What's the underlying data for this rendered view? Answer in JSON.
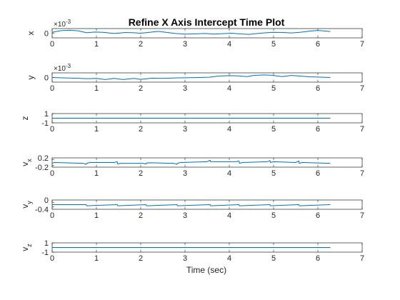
{
  "figure": {
    "title": "Refine X Axis Intercept Time Plot",
    "xlabel": "Time (sec)"
  },
  "colors": {
    "line": "#0072BD",
    "axes": "#262626",
    "grid": "#262626",
    "background": "#ffffff"
  },
  "chart_data": [
    {
      "type": "line",
      "ylabel": "x",
      "exponent_label": "×10^{-3}",
      "xlim": [
        0,
        7
      ],
      "ylim": [
        -2,
        2
      ],
      "xticks": [
        0,
        1,
        2,
        3,
        4,
        5,
        6,
        7
      ],
      "xtick_labels": [
        "0",
        "1",
        "2",
        "3",
        "4",
        "5",
        "6",
        "7"
      ],
      "yticks": [
        0
      ],
      "ytick_labels": [
        "0"
      ],
      "grid": "x-only",
      "series": [
        {
          "x": [
            0,
            0.2,
            0.4,
            0.6,
            0.78,
            0.95,
            1.15,
            1.4,
            1.65,
            1.85,
            2.0,
            2.2,
            2.4,
            2.6,
            2.78,
            3.0,
            3.2,
            3.45,
            3.65,
            3.85,
            4.05,
            4.25,
            4.45,
            4.6,
            4.78,
            5.0,
            5.2,
            5.4,
            5.6,
            5.8,
            6.0,
            6.2,
            6.28
          ],
          "y": [
            0.4,
            1.1,
            1.3,
            1.0,
            0.2,
            0.5,
            0.4,
            -0.1,
            0.3,
            0.2,
            0.0,
            0.4,
            0.8,
            0.3,
            -0.1,
            -0.4,
            -0.3,
            -0.1,
            -0.4,
            -0.2,
            0.0,
            -0.3,
            -0.5,
            -0.2,
            0.1,
            0.4,
            0.3,
            0.1,
            0.4,
            0.9,
            1.2,
            0.9,
            0.7
          ]
        }
      ]
    },
    {
      "type": "line",
      "ylabel": "y",
      "exponent_label": "×10^{-3}",
      "xlim": [
        0,
        7
      ],
      "ylim": [
        -2,
        2
      ],
      "xticks": [
        0,
        1,
        2,
        3,
        4,
        5,
        6,
        7
      ],
      "xtick_labels": [
        "0",
        "1",
        "2",
        "3",
        "4",
        "5",
        "6",
        "7"
      ],
      "yticks": [
        0
      ],
      "ytick_labels": [
        "0"
      ],
      "grid": "x-only",
      "series": [
        {
          "x": [
            0,
            0.3,
            0.55,
            0.78,
            1.0,
            1.2,
            1.4,
            1.6,
            1.85,
            2.0,
            2.25,
            2.5,
            2.78,
            3.0,
            3.3,
            3.55,
            3.75,
            4.0,
            4.2,
            4.4,
            4.55,
            4.78,
            5.0,
            5.2,
            5.4,
            5.55,
            5.8,
            6.0,
            6.28
          ],
          "y": [
            0.0,
            -0.2,
            -0.3,
            -0.5,
            -0.4,
            -0.9,
            -0.4,
            -0.9,
            -0.4,
            -0.8,
            -0.3,
            -0.4,
            -0.2,
            -0.1,
            0.0,
            0.1,
            0.6,
            0.8,
            0.7,
            0.4,
            0.9,
            1.1,
            0.9,
            0.4,
            0.9,
            0.7,
            0.3,
            0.2,
            0.0
          ]
        }
      ]
    },
    {
      "type": "line",
      "ylabel": "z",
      "xlim": [
        0,
        7
      ],
      "ylim": [
        -1,
        1
      ],
      "xticks": [
        0,
        1,
        2,
        3,
        4,
        5,
        6,
        7
      ],
      "xtick_labels": [
        "0",
        "1",
        "2",
        "3",
        "4",
        "5",
        "6",
        "7"
      ],
      "yticks": [
        1,
        -1
      ],
      "ytick_labels": [
        "1",
        "-1"
      ],
      "grid": "x-only",
      "series": [
        {
          "x": [
            0,
            6.28
          ],
          "y": [
            0,
            0
          ]
        }
      ]
    },
    {
      "type": "line",
      "ylabel": "v_x",
      "xlim": [
        0,
        7
      ],
      "ylim": [
        -0.3,
        0.3
      ],
      "xticks": [
        0,
        1,
        2,
        3,
        4,
        5,
        6,
        7
      ],
      "xtick_labels": [
        "0",
        "1",
        "2",
        "3",
        "4",
        "5",
        "6",
        "7"
      ],
      "yticks": [
        0.2,
        -0.2
      ],
      "ytick_labels": [
        "0.2",
        "-0.2"
      ],
      "grid": "x-only",
      "series": [
        {
          "x": [
            0,
            0.05,
            0.7,
            0.77,
            0.78,
            0.85,
            1.4,
            1.47,
            1.48,
            1.55,
            2.05,
            2.12,
            2.13,
            2.2,
            2.75,
            2.82,
            2.83,
            2.9,
            3.5,
            3.57,
            3.58,
            3.65,
            4.15,
            4.22,
            4.23,
            4.3,
            4.85,
            4.92,
            4.93,
            5.0,
            5.5,
            5.57,
            5.58,
            5.65,
            6.28
          ],
          "y": [
            -0.05,
            0.0,
            -0.05,
            -0.12,
            -0.05,
            0.0,
            0.0,
            0.05,
            -0.1,
            -0.05,
            -0.05,
            -0.1,
            -0.03,
            -0.02,
            -0.05,
            -0.12,
            -0.05,
            0.0,
            0.05,
            0.15,
            0.05,
            0.05,
            0.05,
            0.1,
            -0.05,
            0.0,
            0.05,
            0.12,
            0.0,
            0.05,
            0.0,
            0.1,
            -0.05,
            0.0,
            -0.05
          ]
        }
      ]
    },
    {
      "type": "line",
      "ylabel": "v_y",
      "xlim": [
        0,
        7
      ],
      "ylim": [
        -0.6,
        0.2
      ],
      "xticks": [
        0,
        1,
        2,
        3,
        4,
        5,
        6,
        7
      ],
      "xtick_labels": [
        "0",
        "1",
        "2",
        "3",
        "4",
        "5",
        "6",
        "7"
      ],
      "yticks": [
        0,
        -0.4
      ],
      "ytick_labels": [
        "0",
        "-0.4"
      ],
      "grid": "x-only",
      "series": [
        {
          "x": [
            0,
            0.77,
            0.78,
            1.47,
            1.48,
            2.12,
            2.13,
            2.82,
            2.83,
            3.57,
            3.58,
            4.22,
            4.23,
            4.92,
            4.93,
            5.57,
            5.58,
            6.28
          ],
          "y": [
            -0.2,
            -0.2,
            -0.3,
            -0.2,
            -0.3,
            -0.2,
            -0.3,
            -0.2,
            -0.3,
            -0.2,
            -0.3,
            -0.2,
            -0.3,
            -0.2,
            -0.3,
            -0.2,
            -0.3,
            -0.2
          ]
        }
      ]
    },
    {
      "type": "line",
      "ylabel": "v_z",
      "xlim": [
        0,
        7
      ],
      "ylim": [
        -1,
        1
      ],
      "xticks": [
        0,
        1,
        2,
        3,
        4,
        5,
        6,
        7
      ],
      "xtick_labels": [
        "0",
        "1",
        "2",
        "3",
        "4",
        "5",
        "6",
        "7"
      ],
      "yticks": [
        1,
        -1
      ],
      "ytick_labels": [
        "1",
        "-1"
      ],
      "grid": "x-only",
      "series": [
        {
          "x": [
            0,
            6.28
          ],
          "y": [
            0,
            0
          ]
        }
      ]
    }
  ]
}
